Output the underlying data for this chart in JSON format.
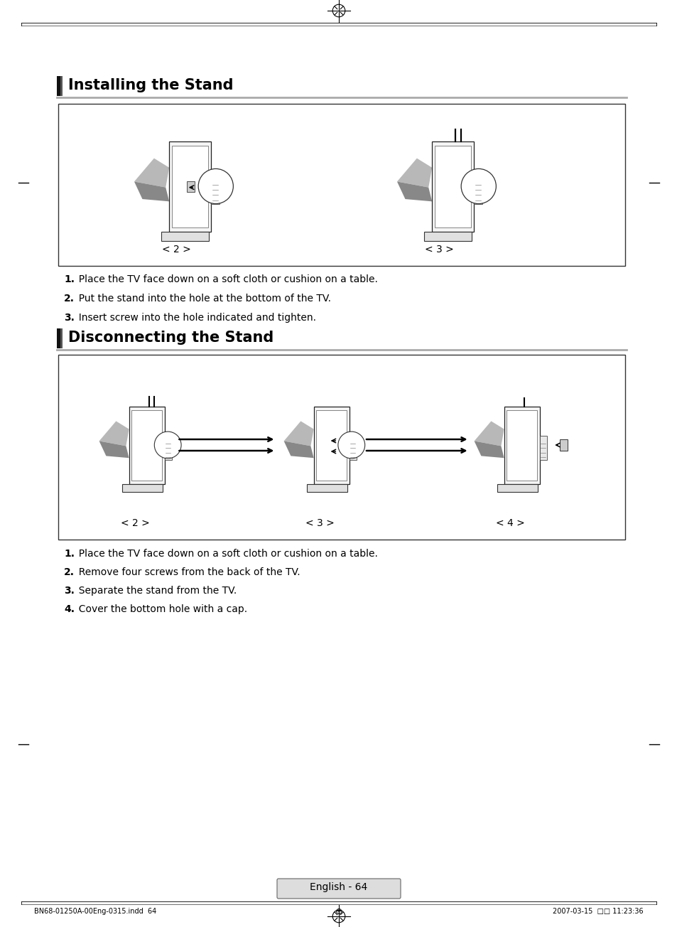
{
  "bg_color": "#ffffff",
  "section1_title": "Installing the Stand",
  "section2_title": "Disconnecting the Stand",
  "section1_steps": [
    "1.  Place the TV face down on a soft cloth or cushion on a table.",
    "2.  Put the stand into the hole at the bottom of the TV.",
    "3.  Insert screw into the hole indicated and tighten."
  ],
  "section2_steps": [
    "1.  Place the TV face down on a soft cloth or cushion on a table.",
    "2.  Remove four screws from the back of the TV.",
    "3.  Separate the stand from the TV.",
    "4.  Cover the bottom hole with a cap."
  ],
  "install_captions": [
    "< 2 >",
    "< 3 >"
  ],
  "disconnect_captions": [
    "< 2 >",
    "< 3 >",
    "< 4 >"
  ],
  "footer_left": "BN68-01250A-00Eng-0315.indd  64",
  "footer_right": "2007-03-15  □□ 11:23:36",
  "page_number": "English - 64",
  "title_bar_color": "#111111",
  "title_bar_color2": "#555555",
  "sep_line_color": "#aaaaaa",
  "box_edge_color": "#333333",
  "tv_face_color": "#f5f5f5",
  "tv_edge_color": "#222222",
  "base_color": "#e0e0e0",
  "shadow_light": "#b8b8b8",
  "shadow_dark": "#888888"
}
